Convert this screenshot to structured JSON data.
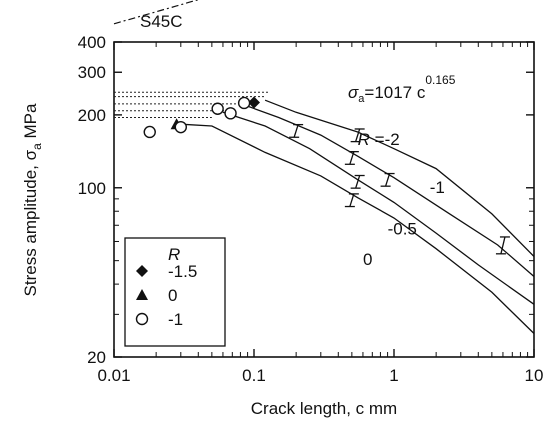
{
  "chart_data": {
    "type": "line",
    "material_label": "S45C",
    "xlabel": "Crack length,  c   mm",
    "ylabel_main": "Stress amplitude,  σ",
    "ylabel_sub": "a",
    "ylabel_unit": "MPa",
    "x_scale": "log",
    "y_scale": "log",
    "xlim": [
      0.01,
      10
    ],
    "ylim": [
      20,
      400
    ],
    "x_ticks": [
      0.01,
      0.1,
      1,
      10
    ],
    "x_tick_labels": [
      "0.01",
      "0.1",
      "1",
      "10"
    ],
    "y_ticks": [
      20,
      100,
      200,
      300,
      400
    ],
    "y_tick_labels": [
      "20",
      "100",
      "200",
      "300",
      "400"
    ],
    "equation": {
      "sigma": "σ",
      "sub": "a",
      "text": "=1017 c",
      "exponent": "0.165"
    },
    "fit_line": {
      "coefficient": 1017,
      "exponent": 0.165,
      "x_range": [
        0.01,
        0.3
      ]
    },
    "series": [
      {
        "name": "R =-2",
        "label_text": "=-2",
        "points": [
          [
            0.12,
            230
          ],
          [
            0.2,
            205
          ],
          [
            0.55,
            170
          ],
          [
            1.0,
            145
          ],
          [
            2.0,
            120
          ],
          [
            5.0,
            78
          ],
          [
            10.0,
            52
          ]
        ]
      },
      {
        "name": "-1",
        "label_text": "-1",
        "points": [
          [
            0.085,
            220
          ],
          [
            0.15,
            195
          ],
          [
            0.3,
            165
          ],
          [
            0.55,
            135
          ],
          [
            1.0,
            110
          ],
          [
            2.5,
            78
          ],
          [
            5.5,
            58
          ],
          [
            10.0,
            43
          ]
        ]
      },
      {
        "name": "-0.5",
        "label_text": "-0.5",
        "points": [
          [
            0.06,
            205
          ],
          [
            0.12,
            180
          ],
          [
            0.25,
            145
          ],
          [
            0.55,
            108
          ],
          [
            1.0,
            87
          ],
          [
            2.0,
            65
          ],
          [
            4.0,
            48
          ],
          [
            10.0,
            33
          ]
        ]
      },
      {
        "name": "0",
        "label_text": "0",
        "points": [
          [
            0.03,
            183
          ],
          [
            0.05,
            180
          ],
          [
            0.12,
            140
          ],
          [
            0.3,
            112
          ],
          [
            0.55,
            91
          ],
          [
            1.0,
            75
          ],
          [
            2.0,
            56
          ],
          [
            5.0,
            37
          ],
          [
            10.0,
            25
          ]
        ]
      }
    ],
    "error_bars": [
      [
        0.2,
        172,
        0.015
      ],
      [
        0.55,
        165,
        0.015
      ],
      [
        0.5,
        133,
        0.015
      ],
      [
        0.9,
        108,
        0.015
      ],
      [
        0.55,
        106,
        0.015
      ],
      [
        6.0,
        58,
        0.02
      ],
      [
        0.5,
        89,
        0.015
      ]
    ],
    "markers": [
      {
        "shape": "diamond",
        "x": 0.1,
        "y": 225
      },
      {
        "shape": "triangle",
        "x": 0.028,
        "y": 183
      },
      {
        "shape": "circle",
        "x": 0.018,
        "y": 170
      },
      {
        "shape": "circle",
        "x": 0.03,
        "y": 178
      },
      {
        "shape": "circle",
        "x": 0.055,
        "y": 212
      },
      {
        "shape": "circle",
        "x": 0.068,
        "y": 203
      },
      {
        "shape": "circle",
        "x": 0.085,
        "y": 224
      }
    ],
    "dotted_levels": [
      {
        "y": 248,
        "x_end": 0.13
      },
      {
        "y": 238,
        "x_end": 0.12
      },
      {
        "y": 222,
        "x_end": 0.1
      },
      {
        "y": 208,
        "x_end": 0.065
      },
      {
        "y": 195,
        "x_end": 0.05
      }
    ],
    "legend": {
      "title": "R",
      "placement": "bottom-left",
      "items": [
        {
          "marker": "diamond",
          "label": "-1.5"
        },
        {
          "marker": "triangle",
          "label": "0"
        },
        {
          "marker": "circle",
          "label": "-1"
        }
      ]
    },
    "curve_label_R": "R",
    "curve_labels": [
      {
        "series": 0,
        "x": 0.55,
        "y": 150
      },
      {
        "series": 1,
        "x": 1.8,
        "y": 95
      },
      {
        "series": 2,
        "x": 0.9,
        "y": 64
      },
      {
        "series": 3,
        "x": 0.6,
        "y": 48
      }
    ]
  }
}
